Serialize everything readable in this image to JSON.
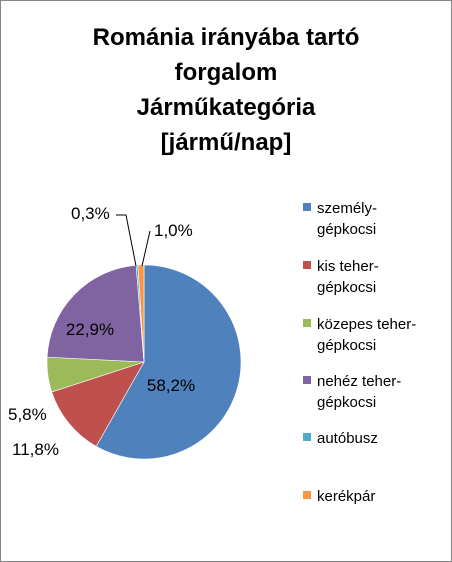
{
  "chart_data": {
    "type": "pie",
    "title_lines": [
      "Románia irányába tartó",
      "forgalom",
      "Járműkategória",
      "[jármű/nap]"
    ],
    "slices": [
      {
        "legend_lines": [
          "személy-",
          "gépkocsi"
        ],
        "value": 58.2,
        "label": "58,2%",
        "color": "#4F81BD"
      },
      {
        "legend_lines": [
          "kis teher-",
          "gépkocsi"
        ],
        "value": 11.8,
        "label": "11,8%",
        "color": "#C0504D"
      },
      {
        "legend_lines": [
          "közepes teher-",
          "gépkocsi"
        ],
        "value": 5.8,
        "label": "5,8%",
        "color": "#9BBB59"
      },
      {
        "legend_lines": [
          "nehéz teher-",
          "gépkocsi"
        ],
        "value": 22.9,
        "label": "22,9%",
        "color": "#8064A2"
      },
      {
        "legend_lines": [
          "autóbusz"
        ],
        "value": 0.3,
        "label": "0,3%",
        "color": "#4BACC6"
      },
      {
        "legend_lines": [
          "kerékpár"
        ],
        "value": 1.0,
        "label": "1,0%",
        "color": "#F79646"
      }
    ],
    "legend_position": "right"
  }
}
